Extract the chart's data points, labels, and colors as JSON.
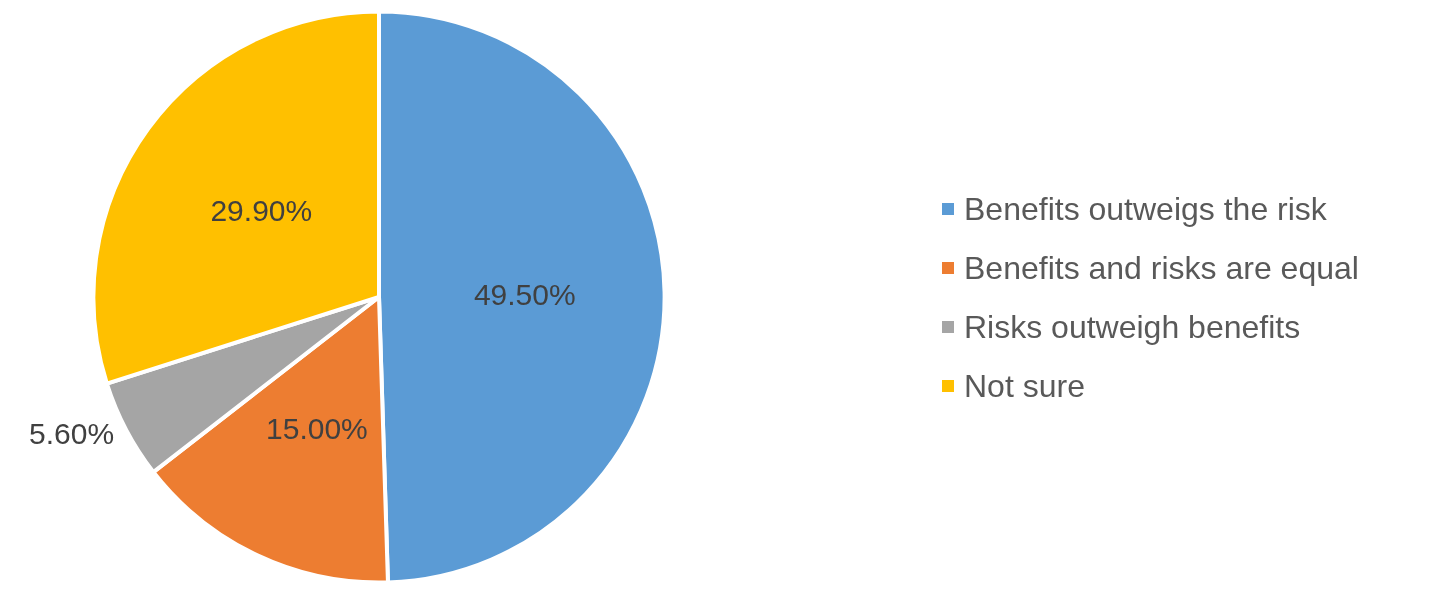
{
  "chart_data": {
    "type": "pie",
    "categories": [
      "Benefits outweigs the risk",
      "Benefits and risks are equal",
      "Risks outweigh benefits",
      "Not sure"
    ],
    "values": [
      49.5,
      15.0,
      5.6,
      29.9
    ],
    "colors": [
      "#5b9bd5",
      "#ed7d31",
      "#a5a5a5",
      "#ffc000"
    ],
    "value_labels": [
      "49.50%",
      "15.00%",
      "5.60%",
      "29.90%"
    ],
    "legend": "right"
  }
}
